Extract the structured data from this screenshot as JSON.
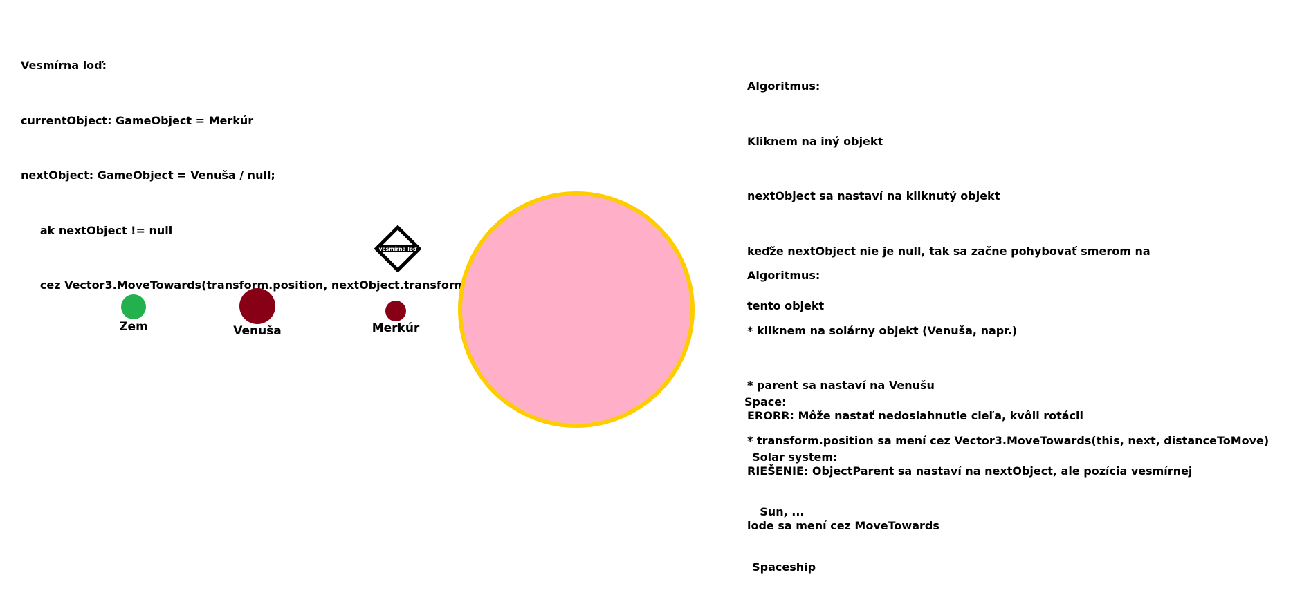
{
  "colors": {
    "background": "#ffffff",
    "text": "#000000",
    "sun_fill": "#ffb0c8",
    "sun_border": "#ffcc00",
    "earth": "#22b14c",
    "venus": "#880015",
    "mercury": "#880015"
  },
  "code": {
    "lines": [
      "Vesmírna loď:",
      "currentObject: GameObject = Merkúr",
      "nextObject: GameObject = Venuša / null;",
      "     ak nextObject != null",
      "     cez Vector3.MoveTowards(transform.position, nextObject.transform.position, distanceToMove )"
    ]
  },
  "algorithm1": {
    "lines": [
      "Algoritmus:",
      "Kliknem na iný objekt",
      "nextObject sa nastaví na kliknutý objekt",
      "keďže nextObject nie je null, tak sa začne pohybovať smerom na",
      "tento objekt",
      "",
      "ERORR: Môže nastať nedosiahnutie cieľa, kvôli rotácii",
      "RIEŠENIE: ObjectParent sa nastaví na nextObject, ale pozícia vesmírnej",
      "lode sa mení cez MoveTowards"
    ]
  },
  "algorithm2": {
    "lines": [
      "Algoritmus:",
      "* kliknem na solárny objekt (Venuša, napr.)",
      "* parent sa nastaví na Venušu",
      "* transform.position sa mení cez Vector3.MoveTowards(this, next, distanceToMove)"
    ]
  },
  "hierarchy": {
    "lines": [
      "Space:",
      "  Solar system:",
      "    Sun, ...",
      "  Spaceship"
    ]
  },
  "bodies": {
    "earth_label": "Zem",
    "venus_label": "Venuša",
    "mercury_label": "Merkúr",
    "ship_label": "vesmírna loď"
  }
}
